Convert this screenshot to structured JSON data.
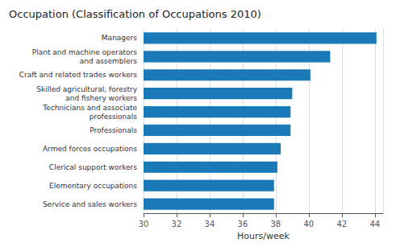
{
  "chart_data": {
    "type": "bar",
    "orientation": "horizontal",
    "title": "Occupation (Classification of Occupations 2010)",
    "xlabel": "Hours/week",
    "categories": [
      "Service and sales workers",
      "Elementary occupations",
      "Clerical support workers",
      "Armed forces occupations",
      "Professionals",
      "Technicians and associate\nprofessionals",
      "Skilled agricultural, forestry\nand fishery workers",
      "Craft and related trades workers",
      "Plant and machine operators\nand assemblers",
      "Managers"
    ],
    "values": [
      37.9,
      37.9,
      38.1,
      38.3,
      38.9,
      38.9,
      39.0,
      40.1,
      41.3,
      44.1
    ],
    "color": "#1a7ab8",
    "xlim": [
      30,
      44.5
    ],
    "xticks": [
      30,
      32,
      34,
      36,
      38,
      40,
      42,
      44
    ],
    "grid": true
  }
}
